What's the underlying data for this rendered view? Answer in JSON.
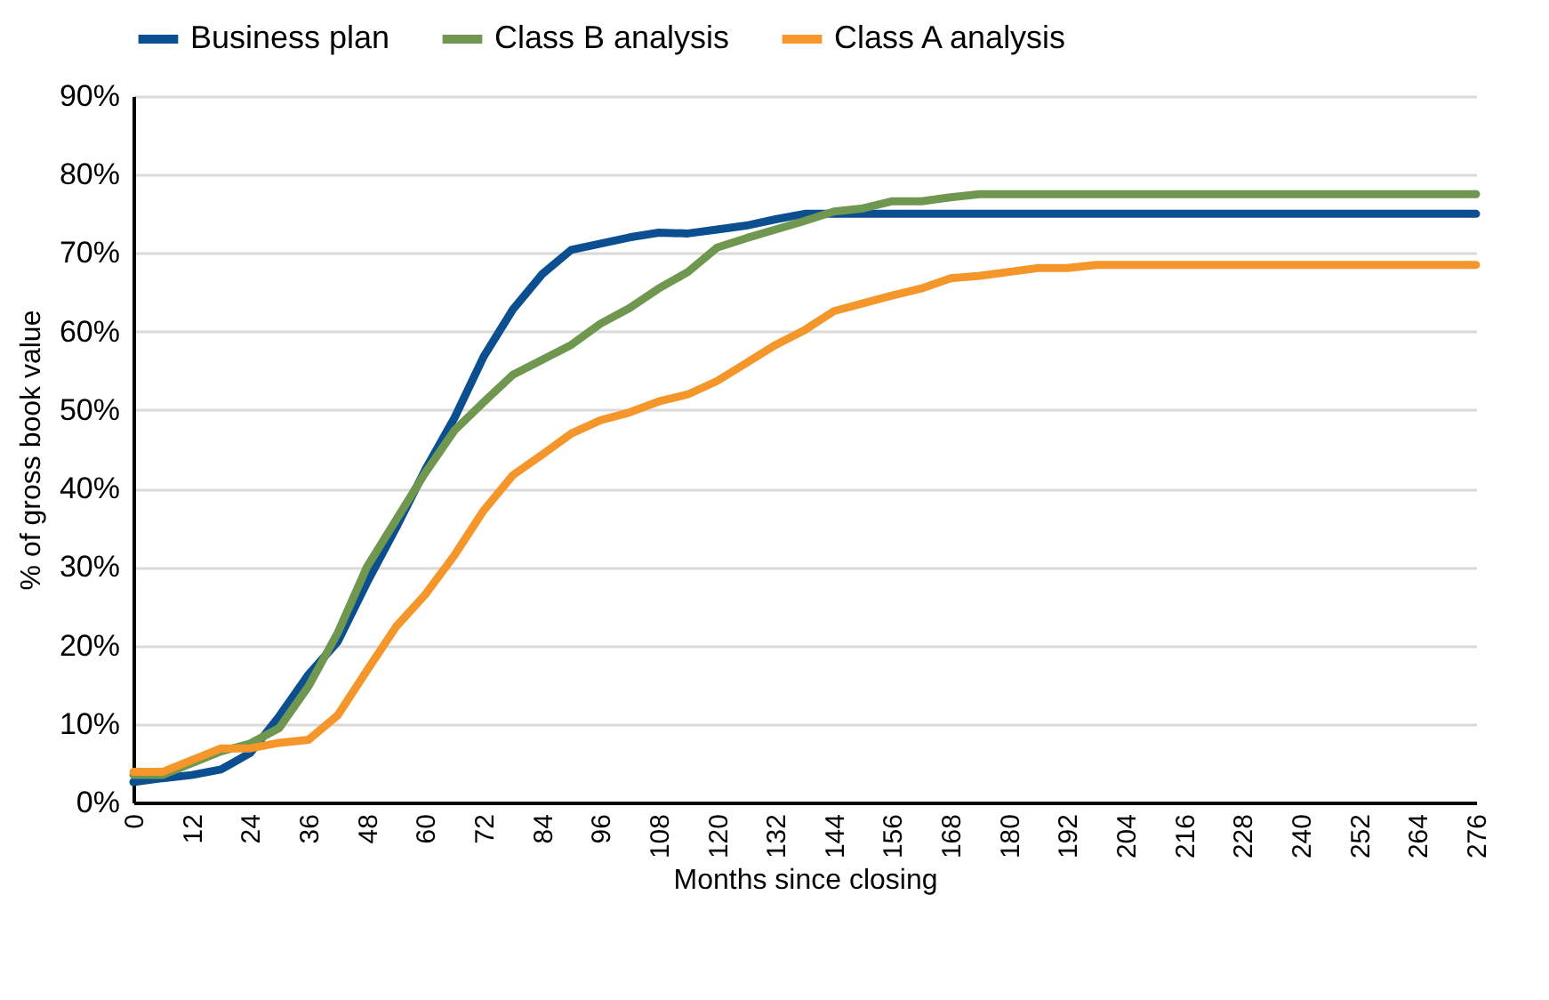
{
  "chart_data": {
    "type": "line",
    "xlabel": "Months since closing",
    "ylabel": "% of gross book value",
    "x": [
      0,
      6,
      12,
      18,
      24,
      30,
      36,
      42,
      48,
      54,
      60,
      66,
      72,
      78,
      84,
      90,
      96,
      102,
      108,
      114,
      120,
      126,
      132,
      138,
      144,
      150,
      156,
      162,
      168,
      174,
      180,
      186,
      192,
      198,
      204,
      210,
      216,
      222,
      228,
      234,
      240,
      246,
      252,
      258,
      264,
      270,
      276
    ],
    "series": [
      {
        "name": "Business plan",
        "color": "#0b4f91",
        "values": [
          2.6,
          3.1,
          3.5,
          4.2,
          6.3,
          11,
          16.3,
          20.5,
          28,
          35,
          42.4,
          49,
          56.8,
          62.8,
          67.3,
          70.4,
          71.2,
          72,
          72.6,
          72.5,
          73,
          73.5,
          74.3,
          75,
          75,
          75,
          75,
          75,
          75,
          75,
          75,
          75,
          75,
          75,
          75,
          75,
          75,
          75,
          75,
          75,
          75,
          75,
          75,
          75,
          75,
          75,
          75
        ]
      },
      {
        "name": "Class B analysis",
        "color": "#70974f",
        "values": [
          3.5,
          3.5,
          5,
          6.5,
          7.5,
          9.5,
          14.8,
          21.6,
          30,
          36,
          42,
          47.4,
          51,
          54.5,
          56.4,
          58.3,
          61,
          63,
          65.5,
          67.6,
          70.7,
          71.9,
          73,
          74.1,
          75.3,
          75.7,
          76.6,
          76.6,
          77.1,
          77.5,
          77.5,
          77.5,
          77.5,
          77.5,
          77.5,
          77.5,
          77.5,
          77.5,
          77.5,
          77.5,
          77.5,
          77.5,
          77.5,
          77.5,
          77.5,
          77.5,
          77.5
        ]
      },
      {
        "name": "Class A analysis",
        "color": "#f5962a",
        "values": [
          3.9,
          3.9,
          5.4,
          6.9,
          6.9,
          7.6,
          8,
          11.1,
          16.8,
          22.4,
          26.5,
          31.5,
          37.2,
          41.7,
          44.3,
          47,
          48.7,
          49.7,
          51.1,
          52,
          53.7,
          56,
          58.3,
          60.2,
          62.6,
          63.6,
          64.6,
          65.5,
          66.8,
          67.1,
          67.6,
          68.1,
          68.1,
          68.5,
          68.5,
          68.5,
          68.5,
          68.5,
          68.5,
          68.5,
          68.5,
          68.5,
          68.5,
          68.5,
          68.5,
          68.5,
          68.5
        ]
      }
    ],
    "xlim": [
      0,
      276
    ],
    "xticks": [
      0,
      12,
      24,
      36,
      48,
      60,
      72,
      84,
      96,
      108,
      120,
      132,
      144,
      156,
      168,
      180,
      192,
      204,
      216,
      228,
      240,
      252,
      264,
      276
    ],
    "ylim": [
      0,
      90
    ],
    "yticks": [
      {
        "value": 0,
        "label": "0%"
      },
      {
        "value": 10,
        "label": "10%"
      },
      {
        "value": 20,
        "label": "20%"
      },
      {
        "value": 30,
        "label": "30%"
      },
      {
        "value": 40,
        "label": "40%"
      },
      {
        "value": 50,
        "label": "50%"
      },
      {
        "value": 60,
        "label": "60%"
      },
      {
        "value": 70,
        "label": "70%"
      },
      {
        "value": 80,
        "label": "80%"
      },
      {
        "value": 90,
        "label": "90%"
      }
    ],
    "grid": "y",
    "legend": "top",
    "marker": "none",
    "line_style": "solid"
  }
}
